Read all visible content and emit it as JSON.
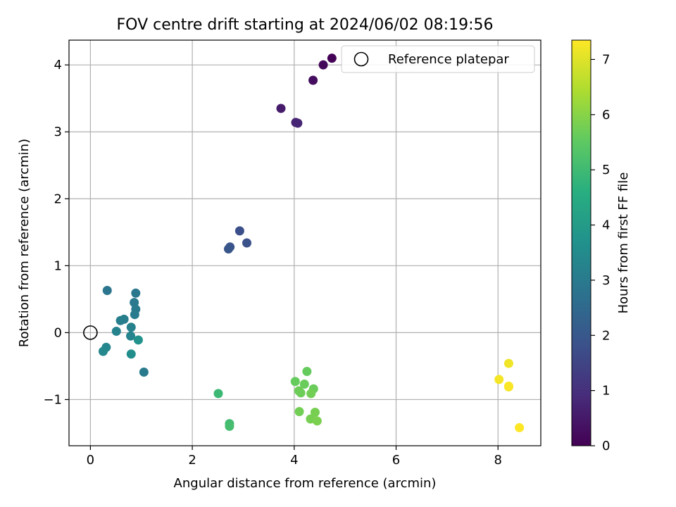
{
  "chart_data": {
    "type": "scatter",
    "title": "FOV centre drift starting at 2024/06/02 08:19:56",
    "xlabel": "Angular distance from reference (arcmin)",
    "ylabel": "Rotation from reference (arcmin)",
    "xlim": [
      -0.42,
      8.84
    ],
    "ylim": [
      -1.69,
      4.37
    ],
    "xticks": [
      0,
      2,
      4,
      6,
      8
    ],
    "yticks": [
      -1,
      0,
      1,
      2,
      3,
      4
    ],
    "grid": true,
    "legend": {
      "placement": "top-right",
      "entries": [
        "Reference platepar"
      ]
    },
    "reference": {
      "name": "Reference platepar",
      "x": 0,
      "y": 0
    },
    "colorbar": {
      "label": "Hours from first FF file",
      "colormap": "viridis",
      "range": [
        0,
        7.35
      ],
      "ticks": [
        0,
        1,
        2,
        3,
        4,
        5,
        6,
        7
      ]
    },
    "points": [
      {
        "x": 4.74,
        "y": 4.1,
        "c": 0.05
      },
      {
        "x": 4.57,
        "y": 4.0,
        "c": 0.15
      },
      {
        "x": 4.37,
        "y": 3.77,
        "c": 0.25
      },
      {
        "x": 3.74,
        "y": 3.35,
        "c": 0.55
      },
      {
        "x": 4.03,
        "y": 3.14,
        "c": 0.7
      },
      {
        "x": 4.07,
        "y": 3.13,
        "c": 0.75
      },
      {
        "x": 2.93,
        "y": 1.52,
        "c": 1.8
      },
      {
        "x": 3.07,
        "y": 1.34,
        "c": 1.85
      },
      {
        "x": 2.74,
        "y": 1.28,
        "c": 1.9
      },
      {
        "x": 2.71,
        "y": 1.25,
        "c": 1.95
      },
      {
        "x": 0.33,
        "y": 0.63,
        "c": 2.85
      },
      {
        "x": 0.89,
        "y": 0.59,
        "c": 2.9
      },
      {
        "x": 0.86,
        "y": 0.45,
        "c": 2.95
      },
      {
        "x": 0.89,
        "y": 0.35,
        "c": 3.0
      },
      {
        "x": 0.87,
        "y": 0.27,
        "c": 3.05
      },
      {
        "x": 0.66,
        "y": 0.2,
        "c": 3.1
      },
      {
        "x": 0.59,
        "y": 0.18,
        "c": 3.15
      },
      {
        "x": 0.8,
        "y": 0.08,
        "c": 3.2
      },
      {
        "x": 0.51,
        "y": 0.02,
        "c": 3.25
      },
      {
        "x": 0.79,
        "y": -0.05,
        "c": 3.3
      },
      {
        "x": 0.94,
        "y": -0.11,
        "c": 3.7
      },
      {
        "x": 1.05,
        "y": -0.59,
        "c": 3.0
      },
      {
        "x": 0.31,
        "y": -0.22,
        "c": 3.35
      },
      {
        "x": 0.25,
        "y": -0.28,
        "c": 3.4
      },
      {
        "x": 0.8,
        "y": -0.32,
        "c": 3.6
      },
      {
        "x": 2.51,
        "y": -0.91,
        "c": 4.95
      },
      {
        "x": 2.73,
        "y": -1.36,
        "c": 5.05
      },
      {
        "x": 2.73,
        "y": -1.4,
        "c": 5.1
      },
      {
        "x": 4.25,
        "y": -0.58,
        "c": 5.6
      },
      {
        "x": 4.02,
        "y": -0.73,
        "c": 5.6
      },
      {
        "x": 4.2,
        "y": -0.77,
        "c": 5.65
      },
      {
        "x": 4.38,
        "y": -0.84,
        "c": 5.65
      },
      {
        "x": 4.09,
        "y": -0.87,
        "c": 5.7
      },
      {
        "x": 4.13,
        "y": -0.9,
        "c": 5.7
      },
      {
        "x": 4.33,
        "y": -0.91,
        "c": 5.75
      },
      {
        "x": 4.1,
        "y": -1.18,
        "c": 5.75
      },
      {
        "x": 4.41,
        "y": -1.19,
        "c": 5.8
      },
      {
        "x": 4.32,
        "y": -1.29,
        "c": 5.8
      },
      {
        "x": 4.45,
        "y": -1.32,
        "c": 5.85
      },
      {
        "x": 8.21,
        "y": -0.46,
        "c": 7.2
      },
      {
        "x": 8.02,
        "y": -0.7,
        "c": 7.25
      },
      {
        "x": 8.21,
        "y": -0.8,
        "c": 7.3
      },
      {
        "x": 8.21,
        "y": -0.81,
        "c": 7.3
      },
      {
        "x": 8.42,
        "y": -1.42,
        "c": 7.35
      }
    ]
  }
}
